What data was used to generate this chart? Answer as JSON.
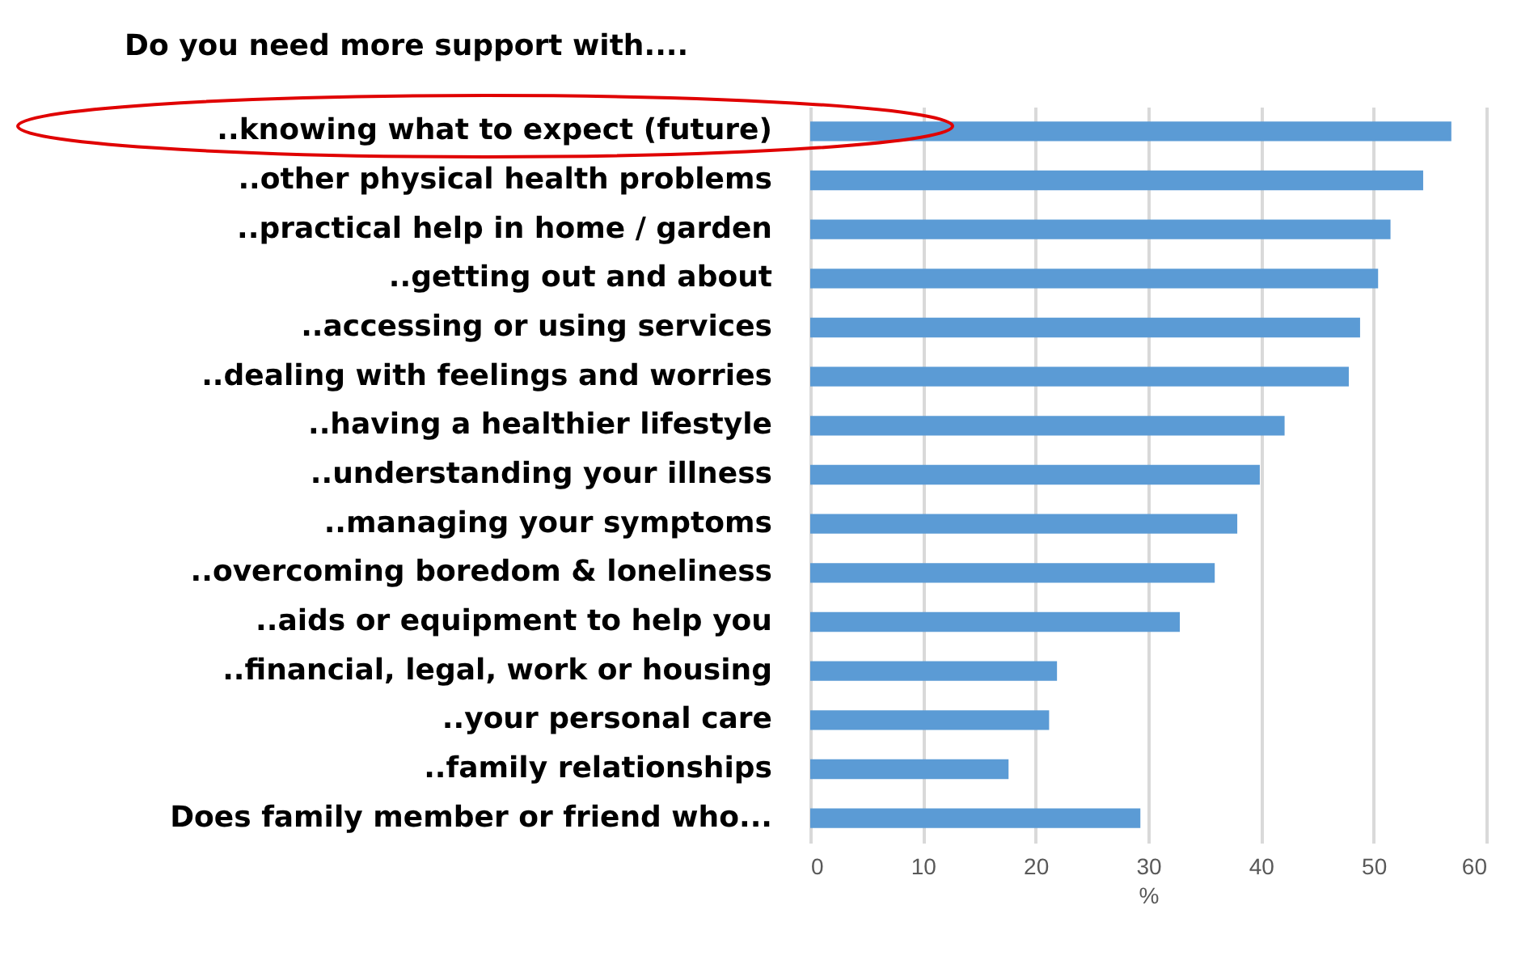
{
  "chart_data": {
    "type": "bar",
    "orientation": "horizontal",
    "title": "Do you need more support with....",
    "xlabel": "%",
    "categories": [
      "..knowing what to expect (future)",
      "..other physical health problems",
      "..practical help in home / garden",
      "..getting out and about",
      "..accessing or using services",
      "..dealing with feelings and worries ",
      "..having a healthier lifestyle",
      "..understanding your illness",
      "..managing your symptoms",
      "..overcoming boredom & loneliness",
      "..aids or equipment to help you",
      "..financial, legal, work or housing ",
      "..your personal care",
      "..family relationships",
      "Does family member or friend who..."
    ],
    "values": [
      56.9,
      54.4,
      51.5,
      50.4,
      48.8,
      47.8,
      42.1,
      39.9,
      37.9,
      35.9,
      32.8,
      21.9,
      21.2,
      17.6,
      29.3
    ],
    "color": "#5b9bd5",
    "xlim": [
      0,
      60
    ],
    "xticks": [
      0,
      10,
      20,
      30,
      40,
      50,
      60
    ],
    "grid": "x"
  }
}
